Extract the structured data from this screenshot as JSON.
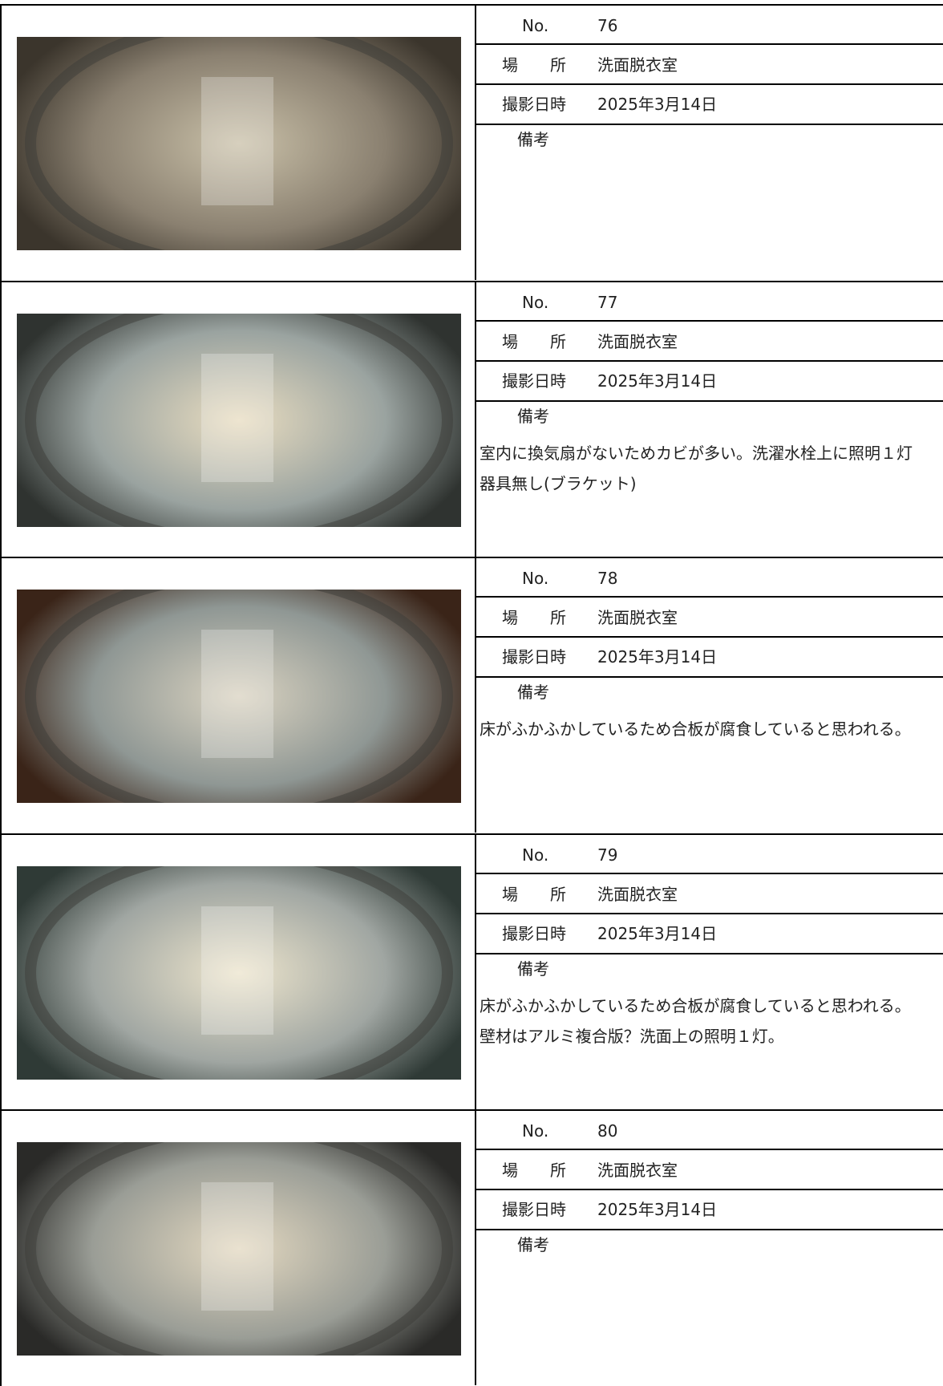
{
  "labels": {
    "no": "No.",
    "location": "場　　所",
    "date": "撮影日時",
    "remarks": "備考"
  },
  "records": [
    {
      "no": 76,
      "location": "洗面脱衣室",
      "date": "2025年3月14日"
    },
    {
      "no": 77,
      "location": "洗面脱衣室",
      "date": "2025年3月14日",
      "remarks": [
        "室内に換気扇がないためカビが多い。洗濯水栓上に照明１灯",
        "器具無し(ブラケット)"
      ]
    },
    {
      "no": 78,
      "location": "洗面脱衣室",
      "date": "2025年3月14日",
      "remarks": [
        "床がふかふかしているため合板が腐食していると思われる。"
      ]
    },
    {
      "no": 79,
      "location": "洗面脱衣室",
      "date": "2025年3月14日",
      "remarks": [
        "床がふかふかしているため合板が腐食していると思われる。",
        "壁材はアルミ複合版？洗面上の照明１灯。"
      ]
    },
    {
      "no": 80,
      "location": "洗面脱衣室",
      "date": "2025年3月14日"
    }
  ]
}
